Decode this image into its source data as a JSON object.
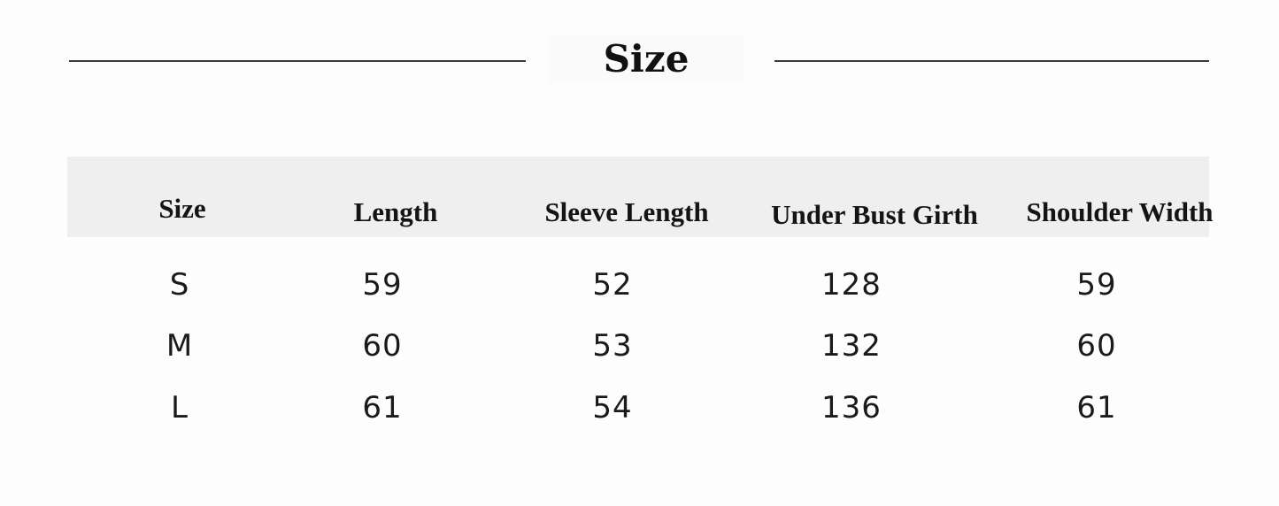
{
  "title": "Size",
  "table": {
    "headers": [
      "Size",
      "Length",
      "Sleeve Length",
      "Under Bust Girth",
      "Shoulder Width"
    ],
    "rows": [
      [
        "S",
        "59",
        "52",
        "128",
        "59"
      ],
      [
        "M",
        "60",
        "53",
        "132",
        "60"
      ],
      [
        "L",
        "61",
        "54",
        "136",
        "61"
      ]
    ]
  },
  "colors": {
    "header_band": "#efefef",
    "rule": "#3a3a3a",
    "text": "#141414"
  }
}
